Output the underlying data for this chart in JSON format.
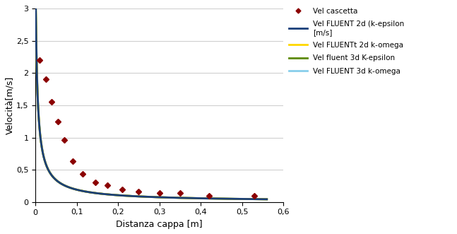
{
  "title": "",
  "xlabel": "Distanza cappa [m]",
  "ylabel": "Velocità[m/s]",
  "xlim": [
    0,
    0.6
  ],
  "ylim": [
    0,
    3
  ],
  "xticks": [
    0,
    0.1,
    0.2,
    0.3,
    0.4,
    0.5,
    0.6
  ],
  "yticks": [
    0,
    0.5,
    1,
    1.5,
    2,
    2.5,
    3
  ],
  "xtick_labels": [
    "0",
    "0,1",
    "0,2",
    "0,3",
    "0,4",
    "0,5",
    "0,6"
  ],
  "ytick_labels": [
    "0",
    "0,5",
    "1",
    "1,5",
    "2",
    "2,5",
    "3"
  ],
  "cascetta_x": [
    0.01,
    0.025,
    0.04,
    0.055,
    0.07,
    0.09,
    0.115,
    0.145,
    0.175,
    0.21,
    0.25,
    0.3,
    0.35,
    0.42,
    0.53
  ],
  "cascetta_y": [
    2.2,
    1.9,
    1.55,
    1.25,
    0.96,
    0.63,
    0.44,
    0.3,
    0.26,
    0.2,
    0.165,
    0.145,
    0.135,
    0.1,
    0.1
  ],
  "cascetta_color": "#8B0000",
  "fluent_2d_kepsilon_color": "#1A3F7A",
  "fluent_2d_komega_color": "#FFD700",
  "fluent_3d_kepsilon_color": "#5C8A00",
  "fluent_3d_komega_color": "#87CEEB",
  "legend_labels": [
    "Vel cascetta",
    "Vel FLUENT 2d (k-epsilon\n[m/s]",
    "Vel FLUENTt 2d k-omega",
    "Vel fluent 3d K-epsilon",
    "Vel FLUENT 3d k-omega"
  ],
  "background_color": "#ffffff",
  "grid_color": "#d0d0d0",
  "curve_A": 0.026,
  "curve_x0": 0.0035,
  "curve_n": -0.88
}
